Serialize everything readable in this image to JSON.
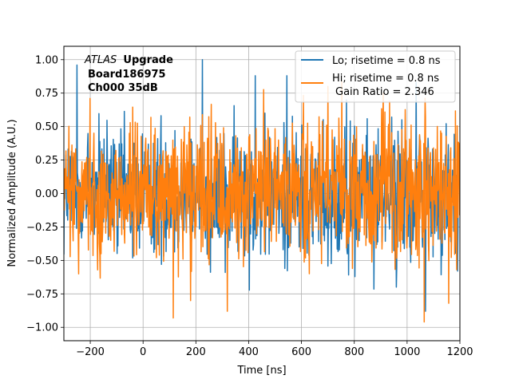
{
  "chart_data": {
    "type": "line",
    "title": "",
    "xlabel": "Time [ns]",
    "ylabel": "Normalized Amplitude (A.U.)",
    "xlim": [
      -300,
      1200
    ],
    "ylim": [
      -1.1,
      1.1
    ],
    "xticks": [
      -200,
      0,
      200,
      400,
      600,
      800,
      1000,
      1200
    ],
    "xtick_labels": [
      "−200",
      "0",
      "200",
      "400",
      "600",
      "800",
      "1000",
      "1200"
    ],
    "yticks": [
      -1.0,
      -0.75,
      -0.5,
      -0.25,
      0.0,
      0.25,
      0.5,
      0.75,
      1.0
    ],
    "ytick_labels": [
      "−1.00",
      "−0.75",
      "−0.50",
      "−0.25",
      "0.00",
      "0.25",
      "0.50",
      "0.75",
      "1.00"
    ],
    "grid": true,
    "legend_position": "top-right",
    "annotation": {
      "atlas": "ATLAS",
      "upgrade": "Upgrade",
      "board": "Board186975",
      "channel": "Ch000 35dB"
    },
    "gain_ratio_text": "Gain Ratio = 2.346",
    "series": [
      {
        "name": "Lo; risetime = 0.8 ns",
        "color": "#1f77b4",
        "x_start": -300,
        "x_end": 1200,
        "envelope": [
          -0.55,
          0.55
        ],
        "peaks": [
          {
            "x": -250,
            "y": 0.96
          },
          {
            "x": 225,
            "y": 1.0
          },
          {
            "x": 425,
            "y": 0.88
          },
          {
            "x": 545,
            "y": 0.88
          },
          {
            "x": 770,
            "y": 0.7
          },
          {
            "x": 1035,
            "y": 0.83
          },
          {
            "x": 1070,
            "y": -0.88
          },
          {
            "x": 960,
            "y": -0.7
          }
        ]
      },
      {
        "name": "Hi; risetime = 0.8 ns",
        "color": "#ff7f0e",
        "x_start": -300,
        "x_end": 1200,
        "envelope": [
          -0.55,
          0.55
        ],
        "peaks": [
          {
            "x": 115,
            "y": -0.93
          },
          {
            "x": 180,
            "y": -0.8
          },
          {
            "x": 320,
            "y": -0.88
          },
          {
            "x": 1065,
            "y": -0.96
          },
          {
            "x": -200,
            "y": 0.71
          },
          {
            "x": 700,
            "y": 0.8
          },
          {
            "x": 910,
            "y": 0.75
          }
        ]
      }
    ]
  }
}
